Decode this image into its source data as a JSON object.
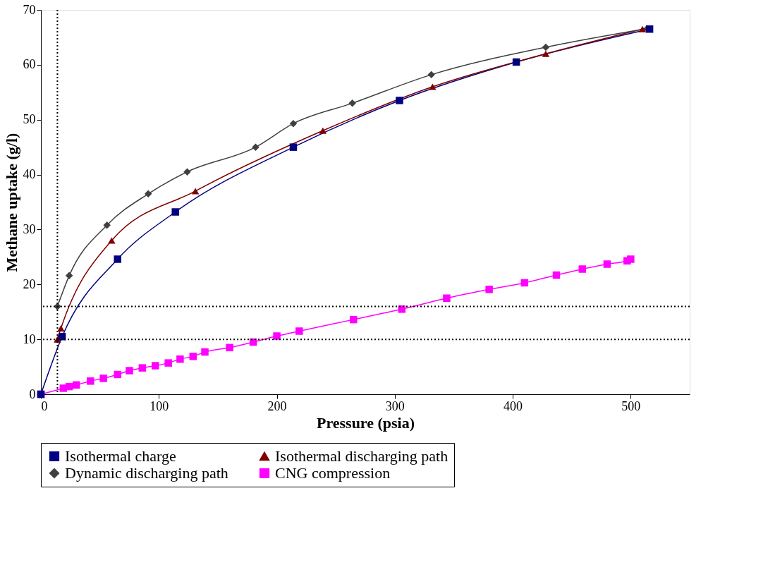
{
  "chart_data": {
    "type": "line",
    "xlabel": "Pressure (psia)",
    "ylabel": "Methane uptake (g/l)",
    "xlim": [
      0,
      550
    ],
    "xticks": [
      0,
      100,
      200,
      300,
      400,
      500
    ],
    "ylim": [
      0,
      70
    ],
    "yticks": [
      0,
      10,
      20,
      30,
      40,
      50,
      60,
      70
    ],
    "grid": false,
    "legend": "bottom",
    "line_style": "solid",
    "series": [
      {
        "name": "Isothermal charge",
        "color": "#000080",
        "marker": "square",
        "x": [
          0,
          18,
          65,
          114,
          214,
          304,
          403,
          516
        ],
        "values": [
          0,
          10.5,
          24.6,
          33.2,
          45,
          53.5,
          60.5,
          66.5
        ]
      },
      {
        "name": "Isothermal discharging path",
        "color": "#800000",
        "marker": "triangle",
        "x": [
          14,
          17,
          60,
          131,
          239,
          332,
          428,
          510
        ],
        "values": [
          10,
          12,
          28,
          37,
          48,
          56,
          62,
          66.5
        ]
      },
      {
        "name": "Dynamic discharging path",
        "color": "#404040",
        "marker": "diamond",
        "x": [
          14,
          24,
          56,
          91,
          124,
          182,
          214,
          264,
          331,
          428,
          514
        ],
        "values": [
          16,
          21.6,
          30.8,
          36.5,
          40.5,
          45,
          49.3,
          53,
          58.2,
          63.2,
          66.6
        ]
      },
      {
        "name": "CNG compression",
        "color": "#ff00ff",
        "marker": "square",
        "x": [
          0,
          19,
          24,
          30,
          42,
          53,
          65,
          75,
          86,
          97,
          108,
          118,
          129,
          139,
          160,
          180,
          200,
          219,
          265,
          306,
          344,
          380,
          410,
          437,
          459,
          480,
          497,
          500
        ],
        "values": [
          0,
          1.1,
          1.4,
          1.7,
          2.4,
          2.9,
          3.6,
          4.3,
          4.8,
          5.2,
          5.7,
          6.4,
          6.9,
          7.7,
          8.5,
          9.5,
          10.6,
          11.5,
          13.6,
          15.5,
          17.5,
          19.1,
          20.3,
          21.7,
          22.8,
          23.7,
          24.3,
          24.6
        ]
      }
    ],
    "ref_lines": [
      {
        "axis": "y",
        "value": 10,
        "color": "#000000",
        "line_style": "dotted"
      },
      {
        "axis": "y",
        "value": 16,
        "color": "#000000",
        "line_style": "dotted"
      },
      {
        "axis": "x",
        "value": 14,
        "color": "#000000",
        "line_style": "dotted"
      }
    ]
  }
}
